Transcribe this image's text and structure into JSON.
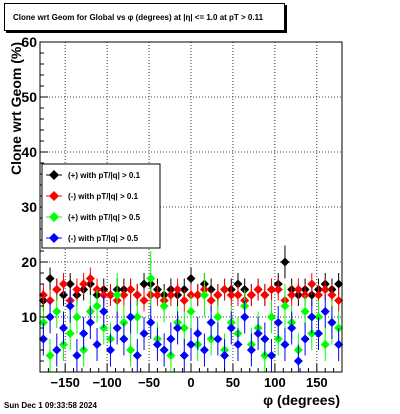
{
  "chart_data": {
    "type": "scatter",
    "title": "Clone wrt Geom for Global vs φ (degrees) at |η| <= 1.0 at pT > 0.11",
    "xlabel": "φ (degrees)",
    "ylabel": "Clone wrt Geom (%)",
    "xlim": [
      -180,
      180
    ],
    "ylim": [
      0,
      60
    ],
    "x_ticks": [
      -150,
      -100,
      -50,
      0,
      50,
      100,
      150
    ],
    "y_ticks": [
      10,
      20,
      30,
      40,
      50,
      60
    ],
    "grid": true,
    "legend_position": "middle-left",
    "series": [
      {
        "name": "(+) with pT/|q| > 0.1",
        "color": "#000000",
        "marker": "diamond",
        "x": [
          -176,
          -168,
          -160,
          -152,
          -144,
          -136,
          -128,
          -120,
          -112,
          -104,
          -96,
          -88,
          -80,
          -72,
          -64,
          -56,
          -48,
          -40,
          -32,
          -24,
          -16,
          -8,
          0,
          8,
          16,
          24,
          32,
          40,
          48,
          56,
          64,
          72,
          80,
          88,
          96,
          104,
          112,
          120,
          128,
          136,
          144,
          152,
          160,
          168,
          176
        ],
        "y": [
          13,
          17,
          15,
          14,
          16,
          14,
          15,
          16,
          14,
          15,
          14,
          15,
          15,
          15,
          14,
          16,
          16,
          15,
          14,
          15,
          14,
          15,
          17,
          14,
          16,
          15,
          14,
          15,
          15,
          16,
          15,
          14,
          15,
          14,
          15,
          16,
          20,
          15,
          14,
          15,
          14,
          15,
          16,
          15,
          16
        ],
        "yerr": [
          2,
          2,
          2,
          2,
          2,
          2,
          2,
          2,
          2,
          2,
          2,
          2,
          2,
          2,
          2,
          2,
          2,
          2,
          2,
          2,
          2,
          2,
          2,
          2,
          2,
          2,
          2,
          2,
          2,
          2,
          2,
          2,
          2,
          2,
          2,
          2,
          3,
          2,
          2,
          2,
          2,
          2,
          2,
          2,
          2
        ]
      },
      {
        "name": "(-) with pT/|q| > 0.1",
        "color": "#ff0000",
        "marker": "diamond",
        "x": [
          -176,
          -168,
          -160,
          -152,
          -144,
          -136,
          -128,
          -120,
          -112,
          -104,
          -96,
          -88,
          -80,
          -72,
          -64,
          -56,
          -48,
          -40,
          -32,
          -24,
          -16,
          -8,
          0,
          8,
          16,
          24,
          32,
          40,
          48,
          56,
          64,
          72,
          80,
          88,
          96,
          104,
          112,
          120,
          128,
          136,
          144,
          152,
          160,
          168,
          176
        ],
        "y": [
          14,
          13,
          15,
          16,
          13,
          15,
          16,
          17,
          15,
          14,
          14,
          13,
          14,
          15,
          14,
          13,
          14,
          14,
          13,
          14,
          15,
          13,
          14,
          14,
          15,
          13,
          14,
          15,
          14,
          14,
          13,
          14,
          15,
          14,
          15,
          15,
          13,
          14,
          15,
          14,
          16,
          14,
          15,
          14,
          13
        ],
        "yerr": [
          2,
          2,
          2,
          2,
          2,
          2,
          2,
          2,
          2,
          2,
          2,
          2,
          2,
          2,
          2,
          2,
          2,
          2,
          2,
          2,
          2,
          2,
          2,
          2,
          2,
          2,
          2,
          2,
          2,
          2,
          2,
          2,
          2,
          2,
          2,
          2,
          2,
          2,
          2,
          2,
          2,
          2,
          2,
          2,
          2
        ]
      },
      {
        "name": "(+) with pT/|q| > 0.5",
        "color": "#00ff00",
        "marker": "diamond",
        "x": [
          -176,
          -168,
          -160,
          -152,
          -144,
          -136,
          -128,
          -120,
          -112,
          -104,
          -96,
          -88,
          -80,
          -72,
          -64,
          -56,
          -48,
          -40,
          -32,
          -24,
          -16,
          -8,
          0,
          8,
          16,
          24,
          32,
          40,
          48,
          56,
          64,
          72,
          80,
          88,
          96,
          104,
          112,
          120,
          128,
          136,
          144,
          152,
          160,
          168,
          176
        ],
        "y": [
          9,
          3,
          11,
          5,
          7,
          10,
          4,
          11,
          12,
          8,
          6,
          14,
          9,
          4,
          10,
          7,
          17,
          6,
          12,
          3,
          9,
          8,
          11,
          5,
          14,
          6,
          10,
          4,
          9,
          7,
          12,
          5,
          8,
          3,
          10,
          6,
          12,
          9,
          4,
          11,
          7,
          10,
          5,
          9,
          8
        ],
        "yerr": [
          3,
          3,
          3,
          3,
          3,
          3,
          3,
          3,
          3,
          3,
          3,
          4,
          3,
          3,
          3,
          3,
          5,
          3,
          3,
          3,
          3,
          3,
          3,
          3,
          4,
          3,
          3,
          3,
          3,
          3,
          3,
          3,
          3,
          3,
          3,
          3,
          4,
          3,
          3,
          3,
          3,
          3,
          3,
          4,
          3
        ]
      },
      {
        "name": "(-) with pT/|q| > 0.5",
        "color": "#0000ff",
        "marker": "diamond",
        "x": [
          -176,
          -168,
          -160,
          -152,
          -144,
          -136,
          -128,
          -120,
          -112,
          -104,
          -96,
          -88,
          -80,
          -72,
          -64,
          -56,
          -48,
          -40,
          -32,
          -24,
          -16,
          -8,
          0,
          8,
          16,
          24,
          32,
          40,
          48,
          56,
          64,
          72,
          80,
          88,
          96,
          104,
          112,
          120,
          128,
          136,
          144,
          152,
          160,
          168,
          176
        ],
        "y": [
          6,
          10,
          4,
          8,
          12,
          3,
          7,
          9,
          5,
          11,
          4,
          8,
          6,
          10,
          3,
          7,
          9,
          5,
          4,
          6,
          8,
          3,
          5,
          7,
          4,
          9,
          6,
          3,
          8,
          5,
          10,
          4,
          7,
          6,
          3,
          9,
          5,
          8,
          2,
          6,
          10,
          7,
          11,
          9,
          5
        ],
        "yerr": [
          3,
          3,
          3,
          3,
          3,
          3,
          3,
          3,
          3,
          3,
          3,
          3,
          3,
          3,
          3,
          3,
          3,
          3,
          3,
          3,
          3,
          3,
          3,
          3,
          3,
          3,
          3,
          3,
          3,
          3,
          3,
          3,
          3,
          3,
          3,
          3,
          3,
          3,
          3,
          3,
          3,
          3,
          3,
          3,
          3
        ]
      }
    ]
  },
  "datestamp": "Sun Dec  1 09:33:58 2024"
}
